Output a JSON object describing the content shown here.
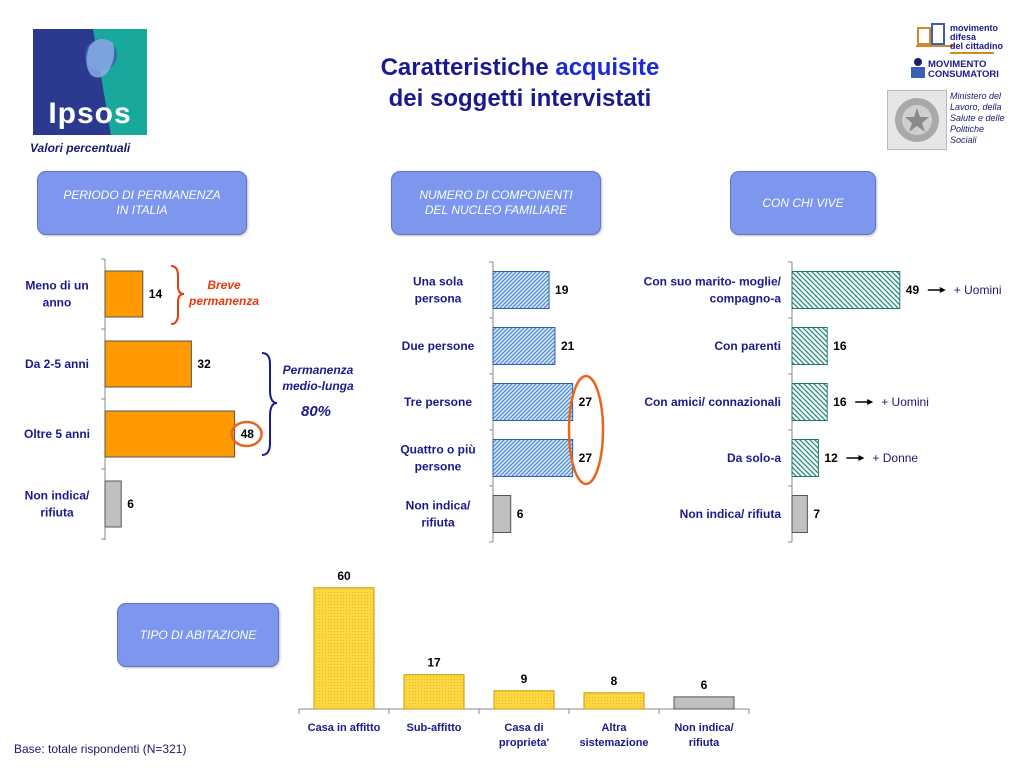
{
  "header": {
    "title_line1_plain": "Caratteristiche",
    "title_line1_accent": "acquisite",
    "title_line2": "dei soggetti intervistati",
    "subtitle_note": "Valori percentuali",
    "logo_text": "Ipsos"
  },
  "sponsors": {
    "mdc": "movimento difesa del cittadino",
    "mdc_lines": [
      "movimento",
      "difesa",
      "del cittadino"
    ],
    "mc_lines": [
      "MOVIMENTO",
      "CONSUMATORI"
    ],
    "ministry_lines": [
      "Ministero del",
      "Lavoro, della",
      "Salute e delle",
      "Politiche",
      "Sociali"
    ]
  },
  "footer": {
    "base_note": "Base: totale rispondenti (N=321)"
  },
  "colors": {
    "orange": "#ff9900",
    "gray": "#c0c0c0",
    "blue_pattern": "#64a0e6",
    "teal_pattern": "#2c9a8c",
    "yellow": "#ffd84a",
    "highlight_ring": "#e8661c",
    "panel": "#7d96ee",
    "text_navy": "#1a1a8e"
  },
  "chart_data": [
    {
      "type": "bar",
      "orientation": "horizontal",
      "title": "PERIODO DI PERMANENZA IN ITALIA",
      "title_lines": [
        "PERIODO DI PERMANENZA",
        "IN ITALIA"
      ],
      "categories": [
        "Meno di un anno",
        "Da 2-5 anni",
        "Oltre 5 anni",
        "Non indica/ rifiuta"
      ],
      "category_lines": [
        [
          "Meno di un",
          "anno"
        ],
        [
          "Da 2-5 anni"
        ],
        [
          "Oltre 5 anni"
        ],
        [
          "Non indica/",
          "rifiuta"
        ]
      ],
      "values": [
        14,
        32,
        48,
        6
      ],
      "labels": [
        "14",
        "32",
        "48",
        "6"
      ],
      "bar_colors": [
        "orange",
        "orange",
        "orange",
        "gray"
      ],
      "highlight_index": 2,
      "annotations": [
        {
          "text_lines": [
            "Breve",
            "permanenza"
          ],
          "color": "#e83a0c",
          "groups": [
            0
          ]
        },
        {
          "text_lines": [
            "Permanenza",
            "medio-lunga"
          ],
          "value": "80%",
          "color": "#1a1a8e",
          "groups": [
            1,
            2
          ]
        }
      ]
    },
    {
      "type": "bar",
      "orientation": "horizontal",
      "title": "NUMERO DI COMPONENTI DEL NUCLEO FAMILIARE",
      "title_lines": [
        "NUMERO DI COMPONENTI",
        "DEL NUCLEO FAMILIARE"
      ],
      "categories": [
        "Una sola persona",
        "Due persone",
        "Tre persone",
        "Quattro o più persone",
        "Non indica/ rifiuta"
      ],
      "category_lines": [
        [
          "Una sola",
          "persona"
        ],
        [
          "Due persone"
        ],
        [
          "Tre persone"
        ],
        [
          "Quattro o più",
          "persone"
        ],
        [
          "Non indica/",
          "rifiuta"
        ]
      ],
      "values": [
        19,
        21,
        27,
        27,
        6
      ],
      "labels": [
        "19",
        "21",
        "27",
        "27",
        "6"
      ],
      "bar_colors": [
        "blue_pattern",
        "blue_pattern",
        "blue_pattern",
        "blue_pattern",
        "gray"
      ],
      "highlight_range": [
        2,
        3
      ]
    },
    {
      "type": "bar",
      "orientation": "horizontal",
      "title": "CON CHI VIVE",
      "title_lines": [
        "CON CHI VIVE"
      ],
      "categories": [
        "Con suo marito- moglie/ compagno-a",
        "Con parenti",
        "Con amici/ connazionali",
        "Da solo-a",
        "Non indica/ rifiuta"
      ],
      "category_lines": [
        [
          "Con suo marito- moglie/",
          "compagno-a"
        ],
        [
          "Con parenti"
        ],
        [
          "Con amici/ connazionali"
        ],
        [
          "Da solo-a"
        ],
        [
          "Non indica/ rifiuta"
        ]
      ],
      "values": [
        49,
        16,
        16,
        12,
        7
      ],
      "labels": [
        "49",
        "16",
        "16",
        "12",
        "7"
      ],
      "bar_colors": [
        "teal_pattern",
        "teal_pattern",
        "teal_pattern",
        "teal_pattern",
        "gray"
      ],
      "side_notes": [
        "+ Uomini",
        "",
        "+ Uomini",
        "+ Donne",
        ""
      ]
    },
    {
      "type": "bar",
      "orientation": "vertical",
      "title": "TIPO DI ABITAZIONE",
      "title_lines": [
        "TIPO DI ABITAZIONE"
      ],
      "categories": [
        "Casa in affitto",
        "Sub-affitto",
        "Casa di proprieta'",
        "Altra sistemazione",
        "Non indica/ rifiuta"
      ],
      "category_lines": [
        [
          "Casa in affitto"
        ],
        [
          "Sub-affitto"
        ],
        [
          "Casa di",
          "proprieta'"
        ],
        [
          "Altra",
          "sistemazione"
        ],
        [
          "Non indica/",
          "rifiuta"
        ]
      ],
      "values": [
        60,
        17,
        9,
        8,
        6
      ],
      "labels": [
        "60",
        "17",
        "9",
        "8",
        "6"
      ],
      "bar_colors": [
        "yellow",
        "yellow",
        "yellow",
        "yellow",
        "gray"
      ]
    }
  ]
}
